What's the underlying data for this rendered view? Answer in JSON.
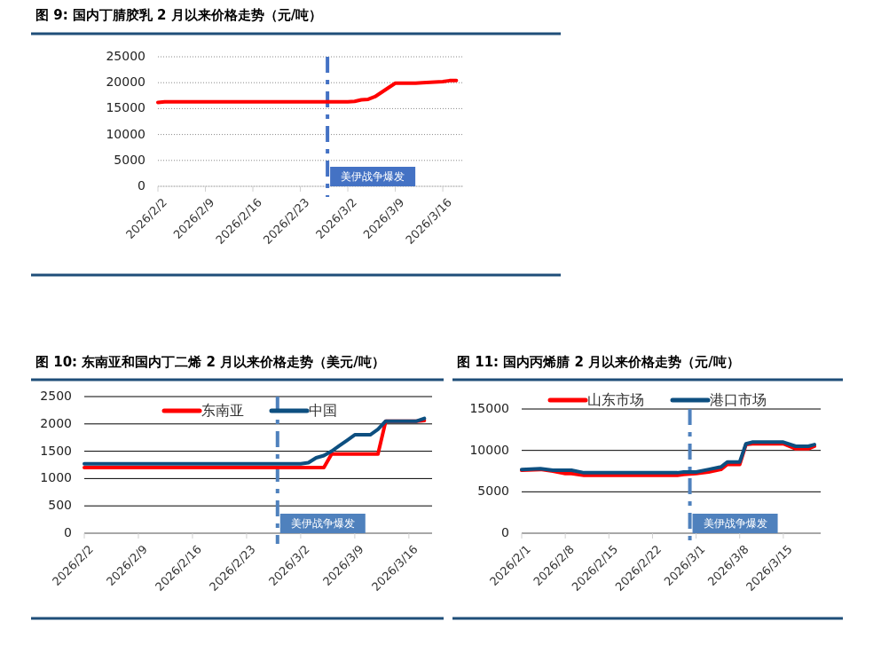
{
  "chart_data": [
    {
      "type": "line",
      "title": "图 9: 国内丁腈胶乳 2 月以来价格走势（元/吨）",
      "xlim": [
        "2026-02-02",
        "2026-03-19"
      ],
      "xticks": [
        {
          "value": "2026-02-02",
          "label": "2026/2/2"
        },
        {
          "value": "2026-02-09",
          "label": "2026/2/9"
        },
        {
          "value": "2026-02-16",
          "label": "2026/2/16"
        },
        {
          "value": "2026-02-23",
          "label": "2026/2/23"
        },
        {
          "value": "2026-03-02",
          "label": "2026/3/2"
        },
        {
          "value": "2026-03-09",
          "label": "2026/3/9"
        },
        {
          "value": "2026-03-16",
          "label": "2026/3/16"
        }
      ],
      "ylim": [
        0,
        25000
      ],
      "yticks": [
        0,
        5000,
        10000,
        15000,
        20000,
        25000
      ],
      "grid": true,
      "x": [
        "2026-02-02",
        "2026-02-03",
        "2026-03-02",
        "2026-03-03",
        "2026-03-04",
        "2026-03-05",
        "2026-03-06",
        "2026-03-09",
        "2026-03-12",
        "2026-03-13",
        "2026-03-16",
        "2026-03-17",
        "2026-03-18"
      ],
      "series": [
        {
          "color": "#ff0000",
          "values": [
            16200,
            16300,
            16300,
            16400,
            16700,
            16800,
            17300,
            19900,
            19900,
            20000,
            20200,
            20400,
            20400
          ]
        }
      ],
      "ref_lines": [
        {
          "axis": "x",
          "value": "2026-02-27",
          "label": "美伊战争爆发",
          "color": "#4472c4",
          "line_style": "dashed"
        }
      ]
    },
    {
      "type": "line",
      "title": "图 10: 东南亚和国内丁二烯 2 月以来价格走势（美元/吨）",
      "xlim": [
        "2026-02-02",
        "2026-03-19"
      ],
      "xticks": [
        {
          "value": "2026-02-02",
          "label": "2026/2/2"
        },
        {
          "value": "2026-02-09",
          "label": "2026/2/9"
        },
        {
          "value": "2026-02-16",
          "label": "2026/2/16"
        },
        {
          "value": "2026-02-23",
          "label": "2026/2/23"
        },
        {
          "value": "2026-03-02",
          "label": "2026/3/2"
        },
        {
          "value": "2026-03-09",
          "label": "2026/3/9"
        },
        {
          "value": "2026-03-16",
          "label": "2026/3/16"
        }
      ],
      "ylim": [
        0,
        2500
      ],
      "yticks": [
        0,
        500,
        1000,
        1500,
        2000,
        2500
      ],
      "grid": "y",
      "legend": "top",
      "x": [
        "2026-02-02",
        "2026-03-02",
        "2026-03-03",
        "2026-03-04",
        "2026-03-05",
        "2026-03-06",
        "2026-03-07",
        "2026-03-08",
        "2026-03-09",
        "2026-03-11",
        "2026-03-12",
        "2026-03-13",
        "2026-03-17",
        "2026-03-18"
      ],
      "series": [
        {
          "name": "东南亚",
          "color": "#ff0000",
          "values": [
            1200,
            1200,
            1200,
            1200,
            1200,
            1450,
            1450,
            1450,
            1450,
            1450,
            1450,
            2050,
            2050,
            2060
          ]
        },
        {
          "name": "中国",
          "color": "#0d4f80",
          "values": [
            1270,
            1270,
            1290,
            1380,
            1420,
            1500,
            1600,
            1700,
            1800,
            1800,
            1900,
            2050,
            2050,
            2100
          ]
        }
      ],
      "ref_lines": [
        {
          "axis": "x",
          "value": "2026-02-27",
          "label": "美伊战争爆发",
          "color": "#4f81bd",
          "line_style": "dashed"
        }
      ]
    },
    {
      "type": "line",
      "title": "图 11: 国内丙烯腈 2 月以来价格走势（元/吨）",
      "xlim": [
        "2026-02-01",
        "2026-03-21"
      ],
      "xticks": [
        {
          "value": "2026-02-01",
          "label": "2026/2/1"
        },
        {
          "value": "2026-02-08",
          "label": "2026/2/8"
        },
        {
          "value": "2026-02-15",
          "label": "2026/2/15"
        },
        {
          "value": "2026-02-22",
          "label": "2026/2/22"
        },
        {
          "value": "2026-03-01",
          "label": "2026/3/1"
        },
        {
          "value": "2026-03-08",
          "label": "2026/3/8"
        },
        {
          "value": "2026-03-15",
          "label": "2026/3/15"
        }
      ],
      "ylim": [
        0,
        15000
      ],
      "yticks": [
        0,
        5000,
        10000,
        15000
      ],
      "grid": "y",
      "legend": "top",
      "x": [
        "2026-02-01",
        "2026-02-04",
        "2026-02-06",
        "2026-02-08",
        "2026-02-09",
        "2026-02-11",
        "2026-02-26",
        "2026-02-27",
        "2026-03-01",
        "2026-03-03",
        "2026-03-05",
        "2026-03-06",
        "2026-03-08",
        "2026-03-09",
        "2026-03-10",
        "2026-03-15",
        "2026-03-17",
        "2026-03-19",
        "2026-03-20"
      ],
      "series": [
        {
          "name": "山东市场",
          "color": "#ff0000",
          "values": [
            7600,
            7700,
            7500,
            7200,
            7200,
            7000,
            7000,
            7100,
            7200,
            7400,
            7700,
            8300,
            8300,
            10700,
            10800,
            10800,
            10200,
            10200,
            10500
          ]
        },
        {
          "name": "港口市场",
          "color": "#0d4f80",
          "values": [
            7700,
            7800,
            7600,
            7600,
            7600,
            7300,
            7300,
            7400,
            7400,
            7700,
            8000,
            8600,
            8600,
            10800,
            11000,
            11000,
            10500,
            10500,
            10700
          ]
        }
      ],
      "ref_lines": [
        {
          "axis": "x",
          "value": "2026-02-28",
          "label": "美伊战争爆发",
          "color": "#4f81bd",
          "line_style": "dashed"
        }
      ]
    }
  ]
}
